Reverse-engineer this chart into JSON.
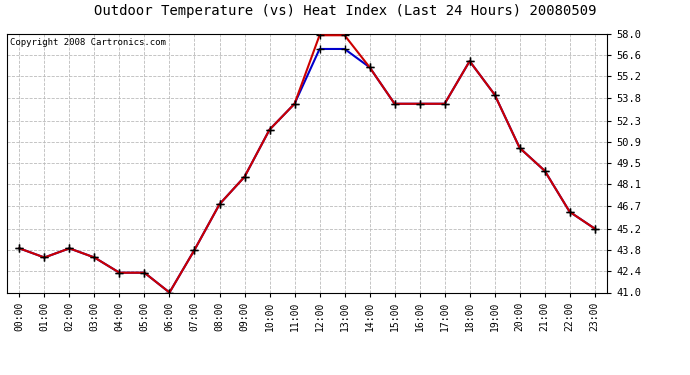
{
  "title": "Outdoor Temperature (vs) Heat Index (Last 24 Hours) 20080509",
  "copyright": "Copyright 2008 Cartronics.com",
  "hours": [
    "00:00",
    "01:00",
    "02:00",
    "03:00",
    "04:00",
    "05:00",
    "06:00",
    "07:00",
    "08:00",
    "09:00",
    "10:00",
    "11:00",
    "12:00",
    "13:00",
    "14:00",
    "15:00",
    "16:00",
    "17:00",
    "18:00",
    "19:00",
    "20:00",
    "21:00",
    "22:00",
    "23:00"
  ],
  "temp": [
    43.9,
    43.3,
    43.9,
    43.3,
    42.3,
    42.3,
    41.0,
    43.8,
    46.8,
    48.6,
    51.7,
    53.4,
    57.9,
    57.9,
    55.8,
    53.4,
    53.4,
    53.4,
    56.2,
    54.0,
    50.5,
    49.0,
    46.3,
    45.2
  ],
  "heat_index": [
    43.9,
    43.3,
    43.9,
    43.3,
    42.3,
    42.3,
    41.0,
    43.8,
    46.8,
    48.6,
    51.7,
    53.4,
    57.0,
    57.0,
    55.8,
    53.4,
    53.4,
    53.4,
    56.2,
    54.0,
    50.5,
    49.0,
    46.3,
    45.2
  ],
  "temp_color": "#cc0000",
  "heat_index_color": "#0000cc",
  "marker_color": "#000000",
  "ylim_min": 41.0,
  "ylim_max": 58.0,
  "yticks": [
    41.0,
    42.4,
    43.8,
    45.2,
    46.7,
    48.1,
    49.5,
    50.9,
    52.3,
    53.8,
    55.2,
    56.6,
    58.0
  ],
  "background_color": "#ffffff",
  "grid_color": "#bbbbbb",
  "title_fontsize": 10,
  "copyright_fontsize": 6.5
}
